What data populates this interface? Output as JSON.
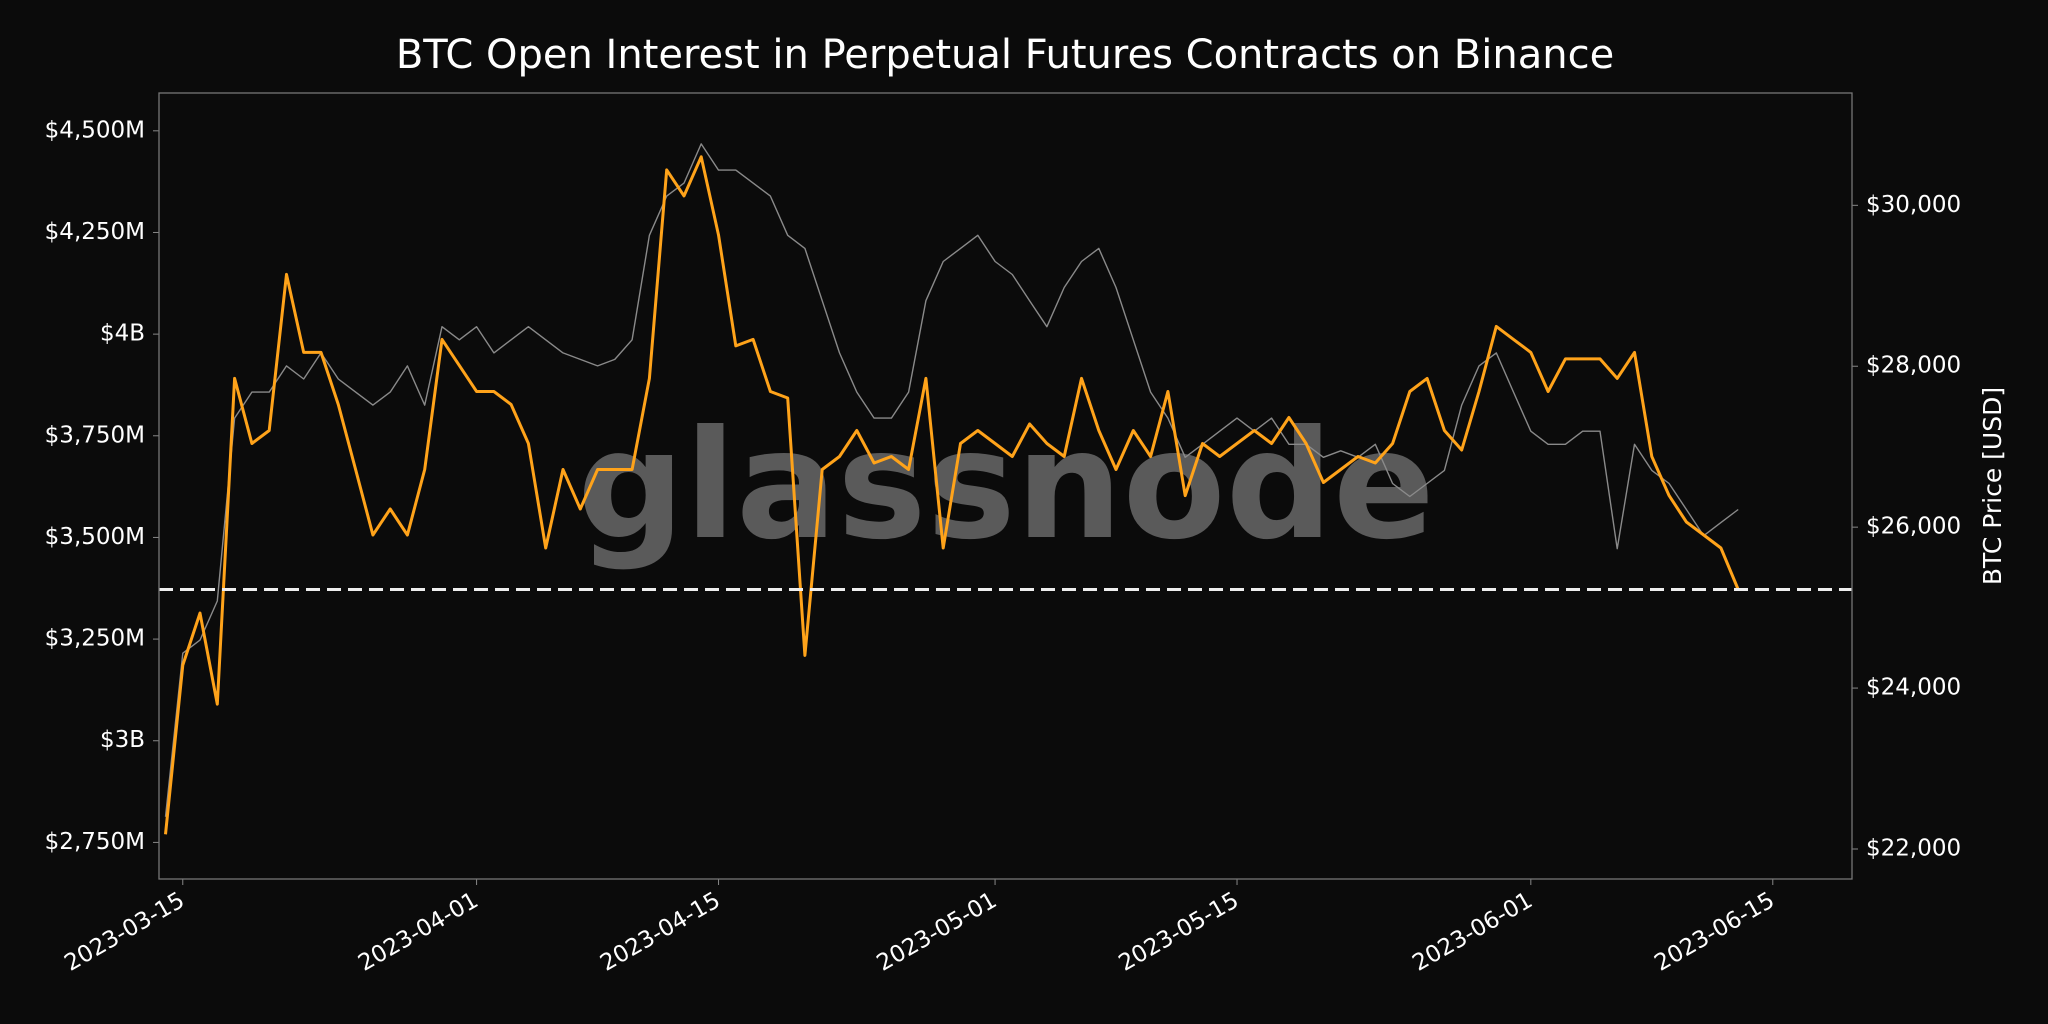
{
  "chart_data": {
    "type": "line",
    "title": "BTC Open Interest in Perpetual Futures Contracts on Binance",
    "y2label": "BTC Price [USD]",
    "watermark": "glassnode",
    "x": [
      "2023-03-14",
      "2023-03-15",
      "2023-03-16",
      "2023-03-17",
      "2023-03-18",
      "2023-03-19",
      "2023-03-20",
      "2023-03-21",
      "2023-03-22",
      "2023-03-23",
      "2023-03-24",
      "2023-03-25",
      "2023-03-26",
      "2023-03-27",
      "2023-03-28",
      "2023-03-29",
      "2023-03-30",
      "2023-03-31",
      "2023-04-01",
      "2023-04-02",
      "2023-04-03",
      "2023-04-04",
      "2023-04-05",
      "2023-04-06",
      "2023-04-07",
      "2023-04-08",
      "2023-04-09",
      "2023-04-10",
      "2023-04-11",
      "2023-04-12",
      "2023-04-13",
      "2023-04-14",
      "2023-04-15",
      "2023-04-16",
      "2023-04-17",
      "2023-04-18",
      "2023-04-19",
      "2023-04-20",
      "2023-04-21",
      "2023-04-22",
      "2023-04-23",
      "2023-04-24",
      "2023-04-25",
      "2023-04-26",
      "2023-04-27",
      "2023-04-28",
      "2023-04-29",
      "2023-04-30",
      "2023-05-01",
      "2023-05-02",
      "2023-05-03",
      "2023-05-04",
      "2023-05-05",
      "2023-05-06",
      "2023-05-07",
      "2023-05-08",
      "2023-05-09",
      "2023-05-10",
      "2023-05-11",
      "2023-05-12",
      "2023-05-13",
      "2023-05-14",
      "2023-05-15",
      "2023-05-16",
      "2023-05-17",
      "2023-05-18",
      "2023-05-19",
      "2023-05-20",
      "2023-05-21",
      "2023-05-22",
      "2023-05-23",
      "2023-05-24",
      "2023-05-25",
      "2023-05-26",
      "2023-05-27",
      "2023-05-28",
      "2023-05-29",
      "2023-05-30",
      "2023-05-31",
      "2023-06-01",
      "2023-06-02",
      "2023-06-03",
      "2023-06-04",
      "2023-06-05",
      "2023-06-06",
      "2023-06-07",
      "2023-06-08",
      "2023-06-09",
      "2023-06-10",
      "2023-06-11",
      "2023-06-12",
      "2023-06-13"
    ],
    "series": [
      {
        "color": "#8a8a8a",
        "axis": "y2",
        "values": [
          22400,
          24433,
          24596,
          25082,
          27355,
          27679,
          27679,
          28004,
          27841,
          28166,
          27841,
          27679,
          27517,
          27679,
          28004,
          27517,
          28491,
          28328,
          28491,
          28166,
          28328,
          28491,
          28328,
          28166,
          28085,
          28004,
          28085,
          28328,
          29627,
          30114,
          30276,
          30763,
          30438,
          30438,
          30276,
          30114,
          29627,
          29464,
          28815,
          28166,
          27679,
          27355,
          27355,
          27679,
          28815,
          29302,
          29464,
          29627,
          29302,
          29140,
          28815,
          28491,
          28978,
          29302,
          29464,
          28978,
          28328,
          27679,
          27355,
          26868,
          27030,
          27192,
          27355,
          27192,
          27355,
          27030,
          27030,
          26868,
          26949,
          26868,
          27030,
          26543,
          26381,
          26543,
          26706,
          27517,
          28004,
          28166,
          27679,
          27192,
          27030,
          27030,
          27192,
          27192,
          25732,
          27030,
          26706,
          26543,
          26219,
          25894,
          26057,
          26219
        ]
      },
      {
        "color": "#ffa31a",
        "values": [
          2770,
          3186,
          3314,
          3090,
          3891,
          3731,
          3763,
          4147,
          3955,
          3955,
          3827,
          3667,
          3506,
          3570,
          3506,
          3667,
          3987,
          3923,
          3859,
          3859,
          3827,
          3731,
          3474,
          3667,
          3570,
          3667,
          3667,
          3667,
          3891,
          4404,
          4340,
          4436,
          4244,
          3971,
          3987,
          3859,
          3843,
          3210,
          3667,
          3699,
          3763,
          3683,
          3699,
          3667,
          3891,
          3474,
          3731,
          3763,
          3731,
          3699,
          3779,
          3731,
          3699,
          3891,
          3763,
          3667,
          3763,
          3699,
          3859,
          3603,
          3731,
          3699,
          3731,
          3763,
          3731,
          3795,
          3731,
          3635,
          3667,
          3699,
          3683,
          3731,
          3859,
          3891,
          3763,
          3715,
          3859,
          4019,
          3987,
          3955,
          3859,
          3939,
          3939,
          3939,
          3891,
          3955,
          3699,
          3603,
          3538,
          3506,
          3474,
          3372
        ]
      }
    ],
    "hline": 3372,
    "xlim": [
      "2023-03-13T15:00Z",
      "2023-06-19T14:00Z"
    ],
    "xticks": [
      "2023-03-15",
      "2023-04-01",
      "2023-04-15",
      "2023-05-01",
      "2023-05-15",
      "2023-06-01",
      "2023-06-15"
    ],
    "ylim": [
      2660,
      4593
    ],
    "yticks": [
      {
        "value": 2750,
        "label": "$2,750M"
      },
      {
        "value": 3000,
        "label": "$3B"
      },
      {
        "value": 3250,
        "label": "$3,250M"
      },
      {
        "value": 3500,
        "label": "$3,500M"
      },
      {
        "value": 3750,
        "label": "$3,750M"
      },
      {
        "value": 4000,
        "label": "$4B"
      },
      {
        "value": 4250,
        "label": "$4,250M"
      },
      {
        "value": 4500,
        "label": "$4,500M"
      }
    ],
    "y2lim": [
      21627,
      31396
    ],
    "y2ticks": [
      {
        "value": 22000,
        "label": "$22,000"
      },
      {
        "value": 24000,
        "label": "$24,000"
      },
      {
        "value": 26000,
        "label": "$26,000"
      },
      {
        "value": 28000,
        "label": "$28,000"
      },
      {
        "value": 30000,
        "label": "$30,000"
      }
    ]
  }
}
